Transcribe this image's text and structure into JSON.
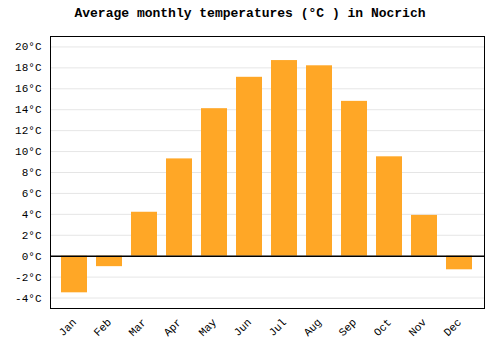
{
  "chart_data": {
    "type": "bar",
    "title": "Average monthly temperatures (°C ) in Nocrich",
    "categories": [
      "Jan",
      "Feb",
      "Mar",
      "Apr",
      "May",
      "Jun",
      "Jul",
      "Aug",
      "Sep",
      "Oct",
      "Nov",
      "Dec"
    ],
    "values": [
      -3.5,
      -1.0,
      4.2,
      9.3,
      14.1,
      17.1,
      18.7,
      18.2,
      14.8,
      9.5,
      3.9,
      -1.3
    ],
    "color": "#FFA726",
    "ylim": [
      -5,
      21
    ],
    "yticks": [
      {
        "value": -4,
        "label": "-4°C"
      },
      {
        "value": -2,
        "label": "-2°C"
      },
      {
        "value": 0,
        "label": "0°C"
      },
      {
        "value": 2,
        "label": "2°C"
      },
      {
        "value": 4,
        "label": "4°C"
      },
      {
        "value": 6,
        "label": "6°C"
      },
      {
        "value": 8,
        "label": "8°C"
      },
      {
        "value": 10,
        "label": "10°C"
      },
      {
        "value": 12,
        "label": "12°C"
      },
      {
        "value": 14,
        "label": "14°C"
      },
      {
        "value": 16,
        "label": "16°C"
      },
      {
        "value": 18,
        "label": "18°C"
      },
      {
        "value": 20,
        "label": "20°C"
      }
    ],
    "grid": true
  }
}
